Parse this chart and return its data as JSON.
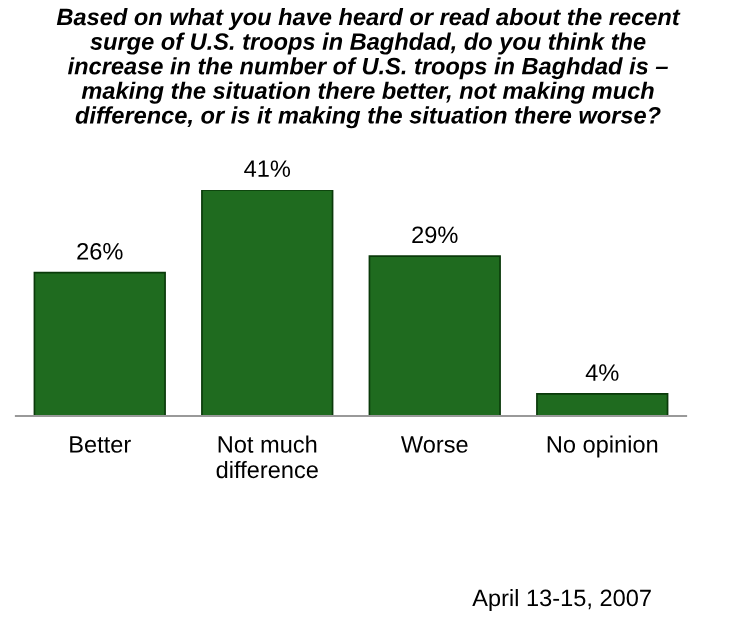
{
  "chart_data": {
    "type": "bar",
    "title": "Based on what you have heard or read about the recent\nsurge of U.S. troops in Baghdad, do you think the\nincrease in the number of U.S. troops in Baghdad is –\nmaking the situation there better, not making much\ndifference, or is it making the situation there worse?",
    "categories": [
      "Better",
      "Not much\ndifference",
      "Worse",
      "No opinion"
    ],
    "values": [
      26,
      41,
      29,
      4
    ],
    "color": "#1f6b1f",
    "value_labels": [
      "26%",
      "41%",
      "29%",
      "4%"
    ],
    "annotations": [
      "April 13-15, 2007"
    ],
    "grid": false,
    "legend": false
  }
}
